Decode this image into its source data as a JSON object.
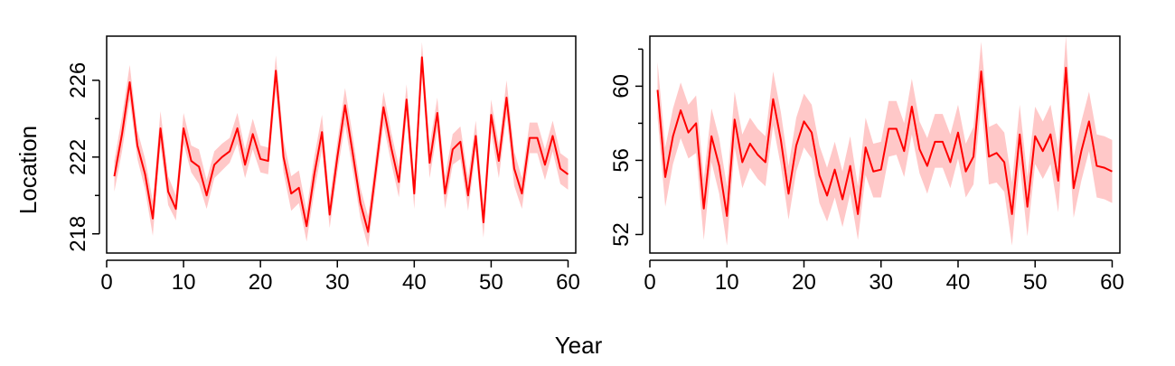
{
  "figure": {
    "xlabel": "Year",
    "ylabel": "Location"
  },
  "style": {
    "line_color": "#ff0000",
    "band_color": "#ffc8c8"
  },
  "chart_data": [
    {
      "type": "line",
      "x": [
        1,
        2,
        3,
        4,
        5,
        6,
        7,
        8,
        9,
        10,
        11,
        12,
        13,
        14,
        15,
        16,
        17,
        18,
        19,
        20,
        21,
        22,
        23,
        24,
        25,
        26,
        27,
        28,
        29,
        30,
        31,
        32,
        33,
        34,
        35,
        36,
        37,
        38,
        39,
        40,
        41,
        42,
        43,
        44,
        45,
        46,
        47,
        48,
        49,
        50,
        51,
        52,
        53,
        54,
        55,
        56,
        57,
        58,
        59,
        60
      ],
      "series": [
        {
          "values": [
            221.0,
            223.2,
            225.9,
            222.6,
            221.1,
            218.8,
            223.5,
            220.2,
            219.3,
            223.5,
            221.8,
            221.5,
            220.0,
            221.6,
            222.0,
            222.3,
            223.5,
            221.6,
            223.2,
            221.9,
            221.8,
            226.5,
            222.0,
            220.1,
            220.4,
            218.4,
            221.1,
            223.3,
            219.0,
            222.0,
            224.7,
            222.2,
            219.6,
            218.1,
            221.3,
            224.6,
            222.5,
            220.7,
            225.0,
            220.1,
            227.2,
            221.7,
            224.3,
            220.1,
            222.4,
            222.8,
            220.0,
            223.1,
            218.6,
            224.2,
            221.8,
            225.1,
            221.4,
            220.1,
            223.0,
            223.0,
            221.6,
            223.1,
            221.4,
            221.1
          ],
          "lower": [
            220.2,
            222.3,
            225.0,
            221.9,
            220.3,
            217.9,
            222.6,
            219.5,
            218.7,
            222.7,
            221.2,
            220.6,
            219.3,
            220.9,
            221.3,
            221.7,
            222.7,
            220.9,
            222.4,
            221.2,
            221.1,
            225.5,
            221.2,
            219.2,
            219.6,
            217.6,
            220.2,
            222.4,
            218.3,
            221.2,
            223.7,
            221.3,
            218.8,
            217.3,
            220.5,
            223.7,
            221.7,
            219.9,
            224.1,
            219.3,
            226.2,
            220.9,
            223.4,
            219.3,
            221.6,
            221.9,
            219.2,
            222.3,
            217.8,
            223.3,
            220.9,
            224.2,
            220.5,
            219.3,
            222.2,
            222.2,
            220.8,
            222.3,
            220.6,
            220.3
          ],
          "upper": [
            221.8,
            224.1,
            226.8,
            223.4,
            221.9,
            219.7,
            224.4,
            221.0,
            220.0,
            224.3,
            222.6,
            222.4,
            220.8,
            222.3,
            222.7,
            223.0,
            224.3,
            222.4,
            224.0,
            222.6,
            222.5,
            227.3,
            222.9,
            221.0,
            221.3,
            219.2,
            222.0,
            224.2,
            219.8,
            222.8,
            225.6,
            223.1,
            220.4,
            218.9,
            222.1,
            225.4,
            223.3,
            221.5,
            225.8,
            221.0,
            228.0,
            222.6,
            225.1,
            221.0,
            223.2,
            223.6,
            220.9,
            223.9,
            219.5,
            225.0,
            222.6,
            226.0,
            222.3,
            220.9,
            223.8,
            223.8,
            222.4,
            223.9,
            222.2,
            221.9
          ]
        }
      ],
      "xlim": [
        0,
        61
      ],
      "ylim": [
        217,
        228.3
      ],
      "xticks": [
        0,
        10,
        20,
        30,
        40,
        50,
        60
      ],
      "yticks": [
        218,
        222,
        226
      ],
      "yminor": [
        220,
        224
      ],
      "legend": "none",
      "grid": false
    },
    {
      "type": "line",
      "x": [
        1,
        2,
        3,
        4,
        5,
        6,
        7,
        8,
        9,
        10,
        11,
        12,
        13,
        14,
        15,
        16,
        17,
        18,
        19,
        20,
        21,
        22,
        23,
        24,
        25,
        26,
        27,
        28,
        29,
        30,
        31,
        32,
        33,
        34,
        35,
        36,
        37,
        38,
        39,
        40,
        41,
        42,
        43,
        44,
        45,
        46,
        47,
        48,
        49,
        50,
        51,
        52,
        53,
        54,
        55,
        56,
        57,
        58,
        59,
        60
      ],
      "series": [
        {
          "values": [
            59.8,
            55.1,
            57.3,
            58.7,
            57.5,
            58.0,
            53.4,
            57.3,
            55.7,
            53.0,
            58.2,
            55.9,
            56.9,
            56.3,
            55.9,
            59.3,
            57.1,
            54.2,
            56.8,
            58.1,
            57.5,
            55.2,
            54.1,
            55.5,
            53.9,
            55.7,
            53.1,
            56.7,
            55.4,
            55.5,
            57.7,
            57.7,
            56.5,
            58.9,
            56.6,
            55.7,
            57.0,
            57.0,
            55.9,
            57.5,
            55.4,
            56.2,
            60.8,
            56.2,
            56.4,
            55.9,
            53.1,
            57.4,
            53.5,
            57.3,
            56.5,
            57.4,
            54.9,
            61.0,
            54.5,
            56.5,
            58.1,
            55.7,
            55.6,
            55.4
          ],
          "lower": [
            58.3,
            53.5,
            55.8,
            57.2,
            56.1,
            56.4,
            51.7,
            55.9,
            54.2,
            51.4,
            56.7,
            54.5,
            55.6,
            55.0,
            54.6,
            57.9,
            55.7,
            52.8,
            55.4,
            56.7,
            56.1,
            53.7,
            52.7,
            54.0,
            52.4,
            54.2,
            51.7,
            55.2,
            54.0,
            54.0,
            56.2,
            56.3,
            55.1,
            57.4,
            55.3,
            54.2,
            55.6,
            55.6,
            54.5,
            56.1,
            54.0,
            54.7,
            59.1,
            54.7,
            54.8,
            54.3,
            51.4,
            55.8,
            51.9,
            55.8,
            55.0,
            55.8,
            53.2,
            59.3,
            52.9,
            54.9,
            56.5,
            54.0,
            53.9,
            53.7
          ],
          "upper": [
            61.3,
            56.7,
            58.8,
            60.2,
            59.0,
            59.5,
            55.0,
            58.8,
            57.2,
            54.6,
            59.7,
            57.4,
            58.3,
            57.7,
            57.3,
            60.8,
            58.6,
            55.7,
            58.3,
            59.6,
            59.0,
            56.8,
            55.6,
            57.0,
            55.4,
            57.3,
            54.6,
            58.3,
            56.9,
            57.0,
            59.2,
            59.2,
            58.0,
            60.4,
            58.1,
            57.2,
            58.5,
            58.5,
            57.4,
            59.0,
            56.9,
            57.8,
            62.4,
            57.8,
            58.0,
            57.5,
            54.8,
            59.0,
            55.1,
            58.9,
            58.1,
            59.0,
            56.6,
            62.7,
            56.2,
            58.1,
            59.7,
            57.4,
            57.3,
            57.1
          ]
        }
      ],
      "xlim": [
        0,
        61
      ],
      "ylim": [
        51,
        62.7
      ],
      "xticks": [
        0,
        10,
        20,
        30,
        40,
        50,
        60
      ],
      "yticks": [
        52,
        56,
        60
      ],
      "yminor": [
        54,
        58,
        62
      ],
      "legend": "none",
      "grid": false
    }
  ]
}
